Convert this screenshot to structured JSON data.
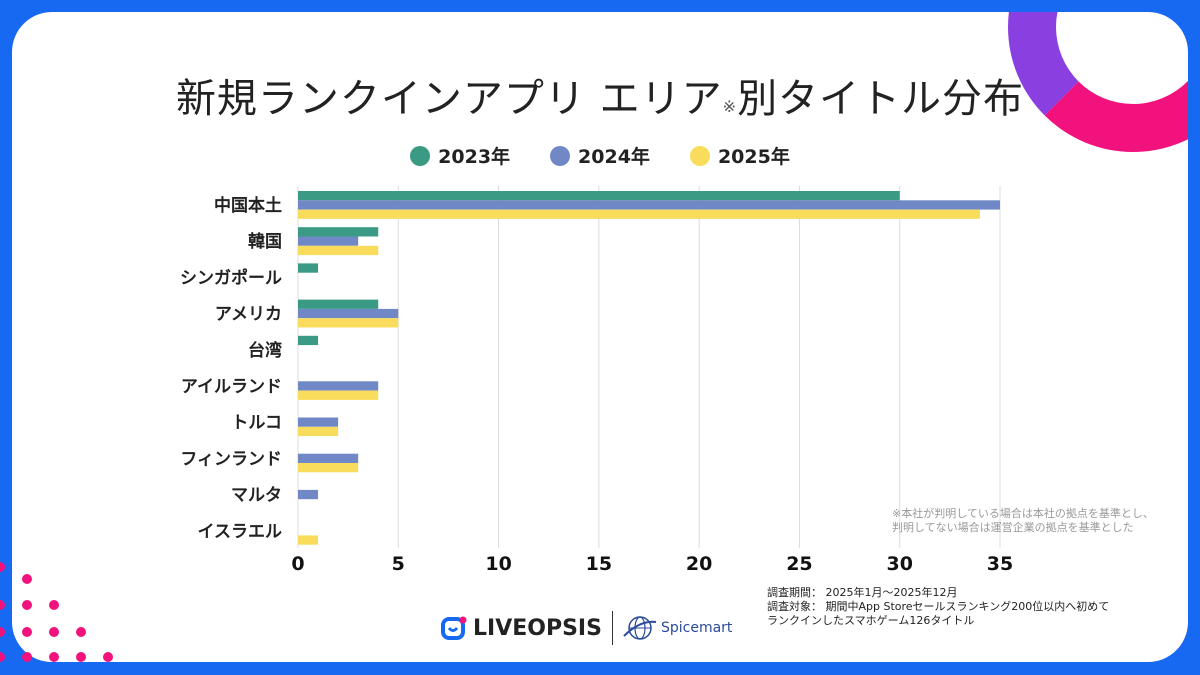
{
  "title_main": "新規ランクインアプリ エリア",
  "title_mark": "※",
  "title_tail": "別タイトル分布",
  "note_lines": [
    "※本社が判明している場合は本社の拠点を基準とし、",
    "判明してない場合は運営企業の拠点を基準とした"
  ],
  "meta_lines": [
    "調査期間： 2025年1月～2025年12月",
    "調査対象： 期間中App Storeセールスランキング200位以内へ初めて",
    "ランクインしたスマホゲーム126タイトル"
  ],
  "logos": {
    "liveopsis": "LIVEOPSIS",
    "spicemart": "Spicemart"
  },
  "chart_data": {
    "type": "bar",
    "orientation": "horizontal",
    "categories": [
      "中国本土",
      "韓国",
      "シンガポール",
      "アメリカ",
      "台湾",
      "アイルランド",
      "トルコ",
      "フィンランド",
      "マルタ",
      "イスラエル"
    ],
    "series": [
      {
        "name": "2023年",
        "color": "#3a9a84",
        "values": [
          30,
          4,
          1,
          4,
          1,
          0,
          0,
          0,
          0,
          0
        ]
      },
      {
        "name": "2024年",
        "color": "#7088c6",
        "values": [
          35,
          3,
          0,
          5,
          0,
          4,
          2,
          3,
          1,
          0
        ]
      },
      {
        "name": "2025年",
        "color": "#fadc5c",
        "values": [
          34,
          4,
          0,
          5,
          0,
          4,
          2,
          3,
          0,
          1
        ]
      }
    ],
    "xlim": [
      0,
      35
    ],
    "xticks": [
      0,
      5,
      10,
      15,
      20,
      25,
      30,
      35
    ],
    "grid": true,
    "legend": "top"
  }
}
